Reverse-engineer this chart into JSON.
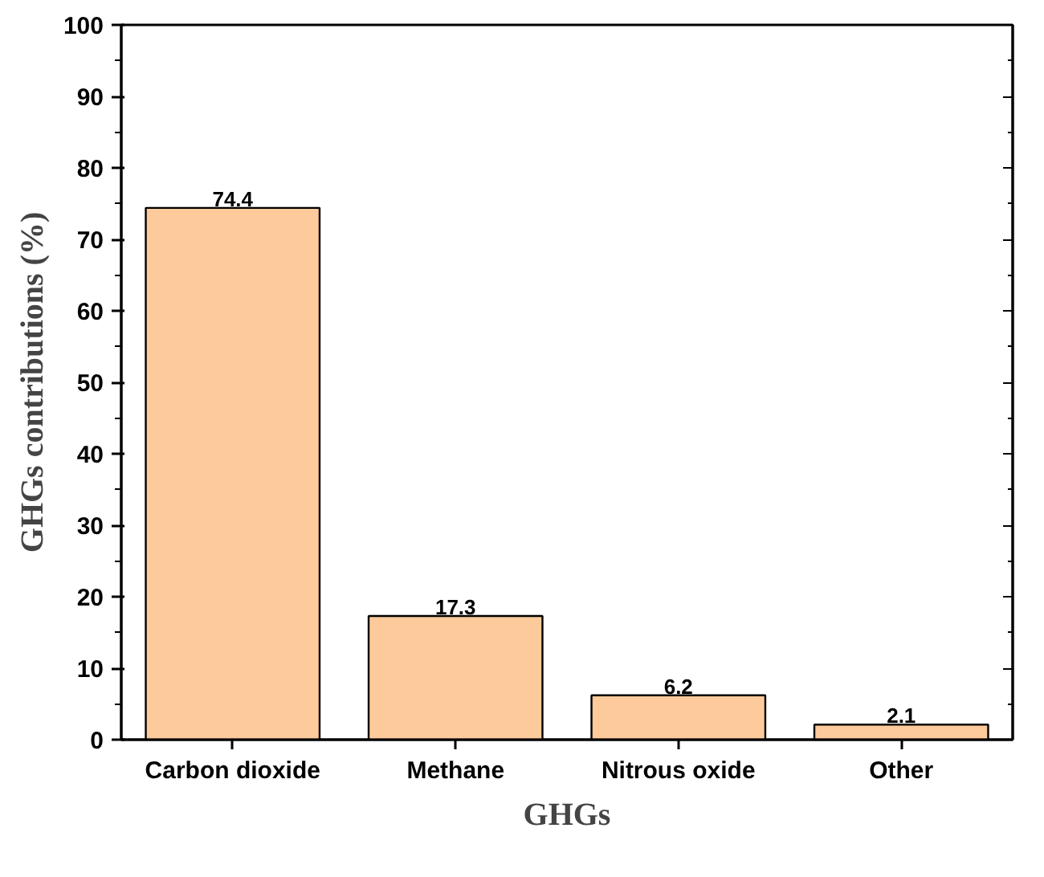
{
  "chart_data": {
    "type": "bar",
    "xlabel": "GHGs",
    "ylabel": "GHGs contributions (%)",
    "categories": [
      "Carbon dioxide",
      "Methane",
      "Nitrous oxide",
      "Other"
    ],
    "values": [
      74.4,
      17.3,
      6.2,
      2.1
    ],
    "color": "#fdca9b",
    "ylim": [
      0,
      100
    ],
    "yticks": [
      0,
      10,
      20,
      30,
      40,
      50,
      60,
      70,
      80,
      90,
      100
    ],
    "grid": false,
    "data_labels": true
  }
}
